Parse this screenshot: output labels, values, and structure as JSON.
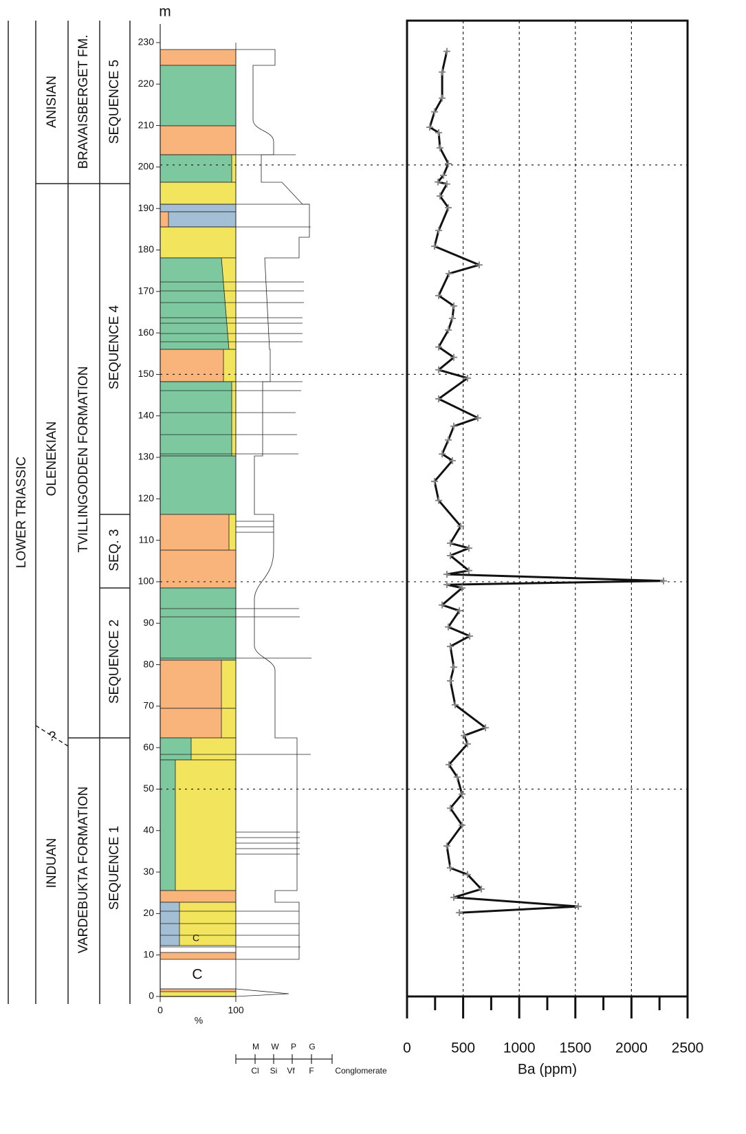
{
  "strat_columns": {
    "system": "LOWER TRIASSIC",
    "stages": [
      "ANISIAN",
      "OLENEKIAN",
      "INDUAN"
    ],
    "uncertain_mark": "?",
    "formations": [
      "BRAVAISBERGET FM.",
      "TVILLINGODDEN FORMATION",
      "VARDEBUKTA FORMATION"
    ],
    "sequences": [
      "SEQUENCE 5",
      "SEQUENCE 4",
      "SEQ. 3",
      "SEQUENCE 2",
      "SEQUENCE 1"
    ]
  },
  "lithology": {
    "depth_unit": "m",
    "xticks": [
      0,
      100
    ],
    "xlabel": "%",
    "column_labels": [
      "C",
      "C"
    ],
    "grain_size_top": [
      "M",
      "W",
      "P",
      "G"
    ],
    "grain_size_bottom": [
      "Cl",
      "Si",
      "Vf",
      "F",
      "Conglomerate"
    ]
  },
  "chart_data": {
    "type": "line",
    "xlabel": "Ba (ppm)",
    "color": "#111111",
    "xlim": [
      0,
      2500
    ],
    "xticks": [
      0,
      500,
      1000,
      1500,
      2000,
      2500
    ],
    "xminor_ticks": [
      250,
      750,
      1250,
      1750,
      2250
    ],
    "ylim": [
      0,
      235.3
    ],
    "yticks": [
      0,
      10,
      20,
      30,
      40,
      50,
      60,
      70,
      80,
      90,
      100,
      110,
      120,
      130,
      140,
      150,
      160,
      170,
      180,
      190,
      200,
      210,
      220,
      230
    ],
    "grid_x": [
      500,
      1000,
      1500,
      2000
    ],
    "reference_depths": [
      50,
      100,
      150,
      200.5
    ],
    "depth": [
      227.9,
      222.9,
      216.6,
      213.3,
      209.6,
      208.3,
      204.6,
      200.8,
      198.0,
      196.4,
      195.9,
      193.0,
      190.2,
      184.7,
      180.9,
      176.4,
      174.3,
      169.0,
      166.5,
      163.5,
      160.7,
      156.6,
      154.1,
      151.1,
      149.1,
      144.1,
      139.5,
      137.5,
      134.2,
      130.8,
      129.2,
      124.2,
      119.6,
      113.4,
      109.3,
      108.1,
      106.3,
      102.7,
      101.8,
      100.2,
      99.3,
      98.5,
      94.4,
      93.0,
      89.1,
      86.9,
      84.4,
      79.4,
      76.1,
      70.3,
      64.8,
      62.9,
      60.9,
      55.9,
      52.9,
      48.8,
      45.4,
      41.3,
      36.3,
      31.0,
      29.4,
      25.9,
      23.9,
      21.7,
      20.2
    ],
    "values": [
      355,
      313,
      313,
      245,
      202,
      282,
      294,
      368,
      325,
      276,
      355,
      294,
      368,
      282,
      245,
      643,
      374,
      282,
      417,
      404,
      368,
      282,
      417,
      282,
      539,
      282,
      631,
      417,
      368,
      313,
      404,
      245,
      282,
      478,
      386,
      551,
      386,
      551,
      355,
      2286,
      355,
      490,
      313,
      466,
      368,
      558,
      386,
      417,
      386,
      429,
      699,
      509,
      539,
      374,
      447,
      490,
      386,
      490,
      355,
      386,
      539,
      662,
      417,
      1526,
      466
    ]
  }
}
